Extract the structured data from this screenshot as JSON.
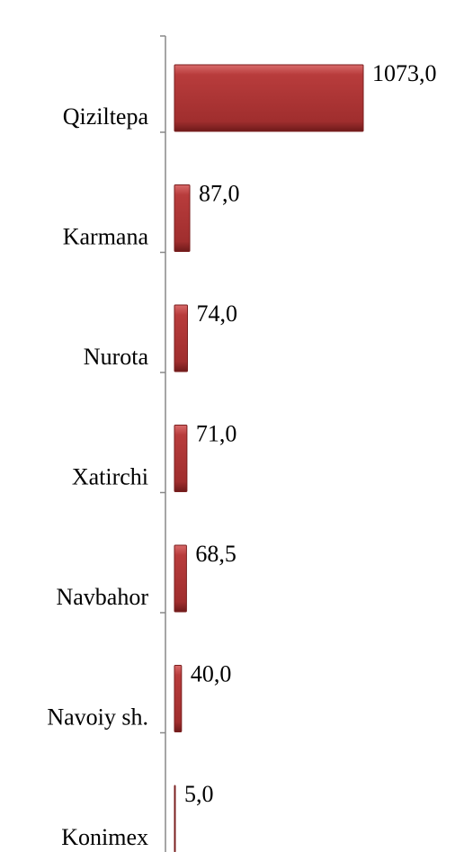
{
  "chart_data": {
    "type": "bar",
    "orientation": "horizontal",
    "categories": [
      "Qiziltepa",
      "Karmana",
      "Nurota",
      "Xatirchi",
      "Navbahor",
      "Navoiy sh.",
      "Konimex"
    ],
    "values": [
      1073,
      87,
      74,
      71,
      68.5,
      40,
      5
    ],
    "value_labels": [
      "1073,0",
      "87,0",
      "74,0",
      "71,0",
      "68,5",
      "40,0",
      "5,0"
    ],
    "color": "#b03a3a"
  }
}
